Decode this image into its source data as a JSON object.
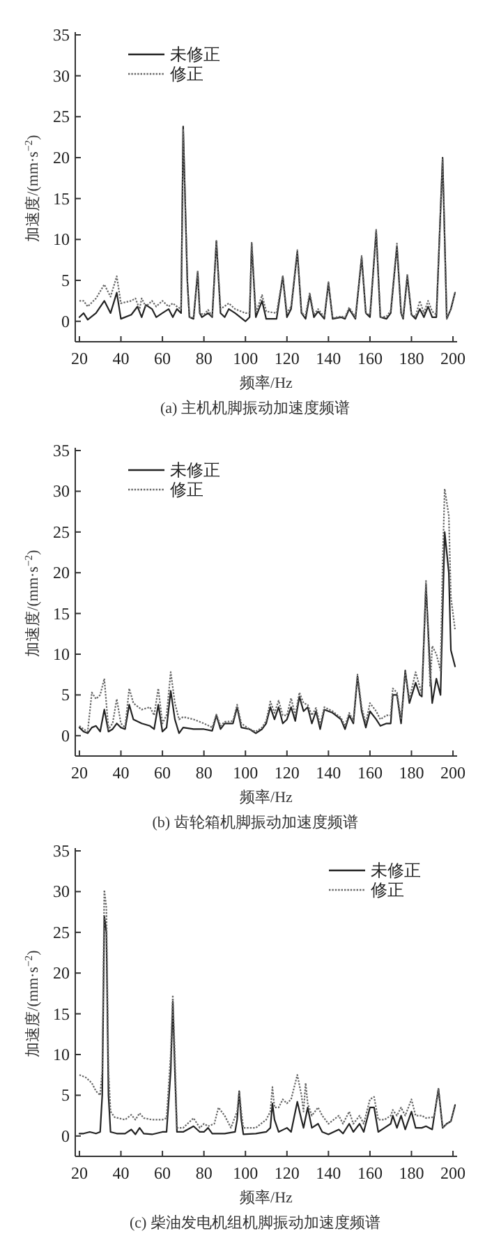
{
  "chart_data": [
    {
      "type": "line",
      "title": "(a) 主机机脚振动加速度频谱",
      "xlabel": "频率/Hz",
      "ylabel": "加速度/(mm·s$^{−2}$)",
      "xlim": [
        18,
        202
      ],
      "ylim": [
        -2.5,
        35
      ],
      "xticks": [
        20,
        40,
        60,
        80,
        100,
        120,
        140,
        160,
        180,
        200
      ],
      "yticks": [
        0,
        5,
        10,
        15,
        20,
        25,
        30,
        35
      ],
      "legend": "top left",
      "series": [
        {
          "name": "未修正",
          "color": "#222222",
          "line_style": "solid",
          "x": [
            20,
            22,
            24,
            28,
            32,
            35,
            38,
            40,
            45,
            48,
            50,
            52,
            55,
            57,
            60,
            63,
            65,
            67,
            69,
            70,
            72,
            73,
            75,
            77,
            78,
            79,
            82,
            84,
            86,
            88,
            90,
            92,
            95,
            100,
            102,
            103,
            105,
            108,
            110,
            115,
            118,
            120,
            122,
            125,
            127,
            129,
            131,
            133,
            135,
            138,
            140,
            142,
            146,
            148,
            150,
            153,
            156,
            158,
            160,
            163,
            165,
            168,
            170,
            173,
            175,
            176,
            178,
            180,
            182,
            184,
            186,
            188,
            190,
            192,
            195,
            197,
            199,
            201
          ],
          "values": [
            0.5,
            1,
            0.2,
            1,
            2.5,
            1,
            3.5,
            0.3,
            0.8,
            1.8,
            0.5,
            2,
            1.5,
            0.5,
            1,
            1.5,
            0.5,
            1.5,
            1,
            23.8,
            5,
            0.5,
            0.3,
            6,
            1,
            0.5,
            1,
            0.5,
            9.8,
            1,
            0.5,
            1.5,
            1,
            0,
            0.5,
            9.5,
            0.5,
            2.5,
            0.3,
            0.3,
            5.5,
            0.5,
            1.5,
            8.5,
            1,
            0.3,
            3.2,
            0.5,
            1.2,
            0.3,
            4.7,
            0.3,
            0.5,
            0.3,
            1.5,
            0.3,
            7.8,
            1,
            0.5,
            11,
            0.5,
            0.3,
            1,
            9.2,
            1,
            0.3,
            5.5,
            0.8,
            0.3,
            1.5,
            0.5,
            1.8,
            0.5,
            0.5,
            20,
            0.3,
            1.5,
            3.5
          ]
        },
        {
          "name": "修正",
          "color": "#666666",
          "line_style": "dotted",
          "x": [
            20,
            22,
            24,
            28,
            32,
            35,
            38,
            40,
            45,
            47,
            49,
            50,
            52,
            55,
            57,
            60,
            63,
            65,
            67,
            69,
            70,
            72,
            73,
            75,
            77,
            78,
            80,
            82,
            84,
            86,
            88,
            92,
            95,
            100,
            102,
            103,
            105,
            108,
            110,
            115,
            118,
            120,
            122,
            125,
            127,
            129,
            131,
            133,
            135,
            138,
            140,
            142,
            146,
            148,
            150,
            153,
            156,
            158,
            160,
            163,
            165,
            168,
            170,
            173,
            175,
            176,
            178,
            180,
            182,
            184,
            186,
            188,
            190,
            192,
            195,
            197,
            199,
            201
          ],
          "values": [
            2.5,
            2.5,
            1.8,
            2.8,
            4.5,
            3,
            5.5,
            2.2,
            2.5,
            2.8,
            1.5,
            2.8,
            1.8,
            2.5,
            1.8,
            2.5,
            1.8,
            2.2,
            1.8,
            1.5,
            23.5,
            5,
            0.5,
            0.5,
            6.2,
            1,
            0.8,
            1.4,
            0.6,
            9.8,
            1.5,
            2.2,
            1.5,
            1,
            1,
            9.7,
            1,
            3.2,
            1.2,
            1,
            5.5,
            1,
            1.8,
            8.7,
            1,
            0.8,
            3.5,
            0.8,
            1.5,
            0.5,
            4.8,
            0.4,
            0.6,
            0.5,
            1.7,
            0.5,
            8,
            1,
            0.8,
            11.2,
            0.5,
            0.6,
            1.3,
            9.5,
            1,
            0.5,
            5.8,
            0.8,
            0.6,
            2.5,
            1,
            2.5,
            1.2,
            0.8,
            19.8,
            0.3,
            1.5,
            3.5
          ]
        }
      ]
    },
    {
      "type": "line",
      "title": "(b) 齿轮箱机脚振动加速度频谱",
      "xlabel": "频率/Hz",
      "ylabel": "加速度/(mm·s$^{−2}$)",
      "xlim": [
        18,
        202
      ],
      "ylim": [
        -2.5,
        35
      ],
      "xticks": [
        20,
        40,
        60,
        80,
        100,
        120,
        140,
        160,
        180,
        200
      ],
      "yticks": [
        0,
        5,
        10,
        15,
        20,
        25,
        30,
        35
      ],
      "legend": "top left",
      "series": [
        {
          "name": "未修正",
          "color": "#222222",
          "line_style": "solid",
          "x": [
            20,
            22,
            24,
            26,
            28,
            30,
            32,
            34,
            36,
            38,
            40,
            42,
            44,
            46,
            50,
            54,
            56,
            58,
            60,
            62,
            64,
            66,
            68,
            70,
            75,
            80,
            84,
            86,
            88,
            90,
            94,
            96,
            98,
            102,
            105,
            108,
            110,
            112,
            114,
            116,
            118,
            120,
            122,
            124,
            126,
            128,
            130,
            132,
            134,
            136,
            138,
            142,
            146,
            148,
            150,
            152,
            154,
            156,
            158,
            160,
            163,
            165,
            168,
            170,
            171,
            173,
            175,
            177,
            179,
            182,
            184,
            185,
            187,
            189,
            190,
            192,
            194,
            195,
            196,
            198,
            199,
            201
          ],
          "values": [
            1,
            0.5,
            0.3,
            1,
            1.2,
            0.5,
            3.2,
            0.5,
            0.8,
            1.5,
            1,
            0.8,
            3.8,
            2,
            1.5,
            1.2,
            0.8,
            3.8,
            0.5,
            1,
            5.5,
            2,
            0.3,
            1,
            0.8,
            0.8,
            0.6,
            2.5,
            0.8,
            1.5,
            1.5,
            3.5,
            1,
            0.8,
            0.3,
            0.8,
            1.5,
            3.5,
            2,
            3.5,
            1.5,
            2,
            3.5,
            1.8,
            4.8,
            3,
            3.5,
            1.5,
            3,
            0.8,
            3.2,
            2.8,
            2,
            0.8,
            2.5,
            1.5,
            7.3,
            3,
            1,
            3,
            2,
            1.2,
            1.5,
            1.5,
            5,
            5,
            1.5,
            8,
            4,
            6.5,
            5,
            4.8,
            18.5,
            8,
            4,
            7,
            5,
            15,
            25,
            20,
            10.5,
            8.5
          ]
        },
        {
          "name": "修正",
          "color": "#666666",
          "line_style": "dotted",
          "x": [
            20,
            22,
            24,
            26,
            28,
            30,
            32,
            34,
            36,
            38,
            40,
            42,
            44,
            46,
            50,
            54,
            56,
            58,
            60,
            62,
            64,
            66,
            68,
            70,
            75,
            80,
            84,
            86,
            88,
            90,
            94,
            96,
            98,
            102,
            105,
            108,
            110,
            112,
            114,
            116,
            118,
            120,
            122,
            124,
            126,
            128,
            130,
            132,
            134,
            136,
            138,
            142,
            146,
            148,
            150,
            152,
            154,
            156,
            158,
            160,
            163,
            165,
            168,
            170,
            171,
            173,
            175,
            177,
            179,
            182,
            184,
            185,
            187,
            189,
            190,
            192,
            194,
            195,
            196,
            198,
            199,
            201
          ],
          "values": [
            1.2,
            0.8,
            0.5,
            5.3,
            4.5,
            5,
            7,
            0.8,
            1.5,
            4.5,
            1.5,
            1,
            5.8,
            4,
            3.2,
            3.5,
            2.5,
            5.8,
            1.5,
            2.5,
            7.8,
            4,
            2,
            2.3,
            2,
            1.5,
            1,
            2.6,
            1.2,
            1.7,
            1.8,
            3.8,
            1.5,
            0.8,
            0.5,
            1,
            1.8,
            4.2,
            2.8,
            4.3,
            2.5,
            2.5,
            4.6,
            2.5,
            5.3,
            4,
            3.8,
            2.5,
            3.4,
            1.3,
            3.5,
            3,
            2.2,
            1.2,
            2.8,
            1.8,
            7.5,
            3.5,
            1.5,
            4,
            3,
            2,
            2.5,
            2.5,
            5.8,
            5.3,
            2,
            7.8,
            4.5,
            7.8,
            6,
            5,
            19,
            6,
            11,
            10,
            8,
            21,
            30.3,
            27,
            17,
            13
          ]
        }
      ]
    },
    {
      "type": "line",
      "title": "(c) 柴油发电机组机脚振动加速度频谱",
      "xlabel": "频率/Hz",
      "ylabel": "加速度/(mm·s$^{−2}$)",
      "xlim": [
        18,
        202
      ],
      "ylim": [
        -2.5,
        35
      ],
      "xticks": [
        20,
        40,
        60,
        80,
        100,
        120,
        140,
        160,
        180,
        200
      ],
      "yticks": [
        0,
        5,
        10,
        15,
        20,
        25,
        30,
        35
      ],
      "legend": "top right",
      "series": [
        {
          "name": "未修正",
          "color": "#222222",
          "line_style": "solid",
          "x": [
            20,
            22,
            25,
            28,
            30,
            31,
            32,
            33,
            34,
            35,
            38,
            42,
            45,
            47,
            49,
            51,
            55,
            60,
            62,
            64,
            65,
            66,
            67,
            70,
            75,
            78,
            80,
            82,
            84,
            90,
            95,
            96,
            97,
            98,
            99,
            105,
            110,
            112,
            113,
            114,
            116,
            120,
            122,
            125,
            127,
            128,
            130,
            132,
            135,
            137,
            140,
            145,
            147,
            150,
            152,
            155,
            157,
            160,
            162,
            164,
            167,
            170,
            171,
            173,
            175,
            177,
            180,
            182,
            185,
            187,
            190,
            191,
            193,
            195,
            197,
            199,
            201
          ],
          "values": [
            0.3,
            0.3,
            0.5,
            0.3,
            0.5,
            5,
            27,
            25,
            5,
            0.5,
            0.3,
            0.3,
            0.8,
            0.2,
            1,
            0.3,
            0.2,
            0.5,
            0.5,
            8,
            16.5,
            8,
            0.5,
            0.5,
            1.2,
            0.5,
            0.5,
            1,
            0.3,
            0.3,
            0.5,
            2,
            5.5,
            2,
            0.2,
            0.3,
            0.5,
            1,
            4,
            2,
            0.5,
            1,
            0.5,
            4.2,
            2,
            1,
            3.5,
            1,
            1.5,
            0.5,
            0.2,
            0.8,
            0.3,
            1.5,
            0.5,
            1.5,
            0.5,
            3.5,
            3.5,
            0.5,
            1,
            1.5,
            2.5,
            1,
            2.5,
            0.8,
            3,
            1,
            1,
            1.2,
            0.8,
            2.5,
            5.8,
            1,
            1.5,
            1.8,
            3.8
          ]
        },
        {
          "name": "修正",
          "color": "#666666",
          "line_style": "dotted",
          "x": [
            20,
            23,
            26,
            28,
            30,
            31,
            32,
            33,
            34,
            35,
            37,
            42,
            45,
            47,
            49,
            51,
            55,
            60,
            62,
            64,
            65,
            66,
            67,
            70,
            75,
            78,
            80,
            82,
            85,
            87,
            90,
            93,
            96,
            97,
            98,
            99,
            105,
            110,
            112,
            113,
            114,
            116,
            118,
            120,
            122,
            125,
            127,
            128,
            129,
            130,
            132,
            135,
            137,
            140,
            145,
            147,
            150,
            152,
            155,
            157,
            160,
            162,
            164,
            167,
            170,
            171,
            173,
            175,
            177,
            180,
            182,
            185,
            187,
            190,
            191,
            193,
            195,
            197,
            199,
            201
          ],
          "values": [
            7.5,
            7.2,
            6.5,
            5.5,
            5,
            8,
            30.2,
            28,
            8,
            3,
            2.3,
            2,
            2.6,
            2,
            2.8,
            2.2,
            2,
            2,
            2.2,
            10,
            17.3,
            10,
            1,
            1,
            2.2,
            1,
            1.5,
            1.2,
            1.5,
            3.5,
            2.5,
            1,
            3,
            5.5,
            3,
            1,
            1,
            2,
            3,
            6,
            3.5,
            3.5,
            4.5,
            4,
            4.5,
            7.5,
            5,
            3,
            6.5,
            4,
            2.5,
            3.5,
            2.5,
            1.5,
            2.5,
            1.5,
            3,
            1.5,
            2.5,
            1.5,
            4.5,
            4.8,
            2,
            2,
            2.5,
            3.2,
            2.5,
            3.5,
            2.5,
            4.5,
            2.5,
            2.5,
            2.2,
            2.3,
            2.5,
            5.8,
            1,
            1.5,
            1.8,
            3.8
          ]
        }
      ]
    }
  ]
}
